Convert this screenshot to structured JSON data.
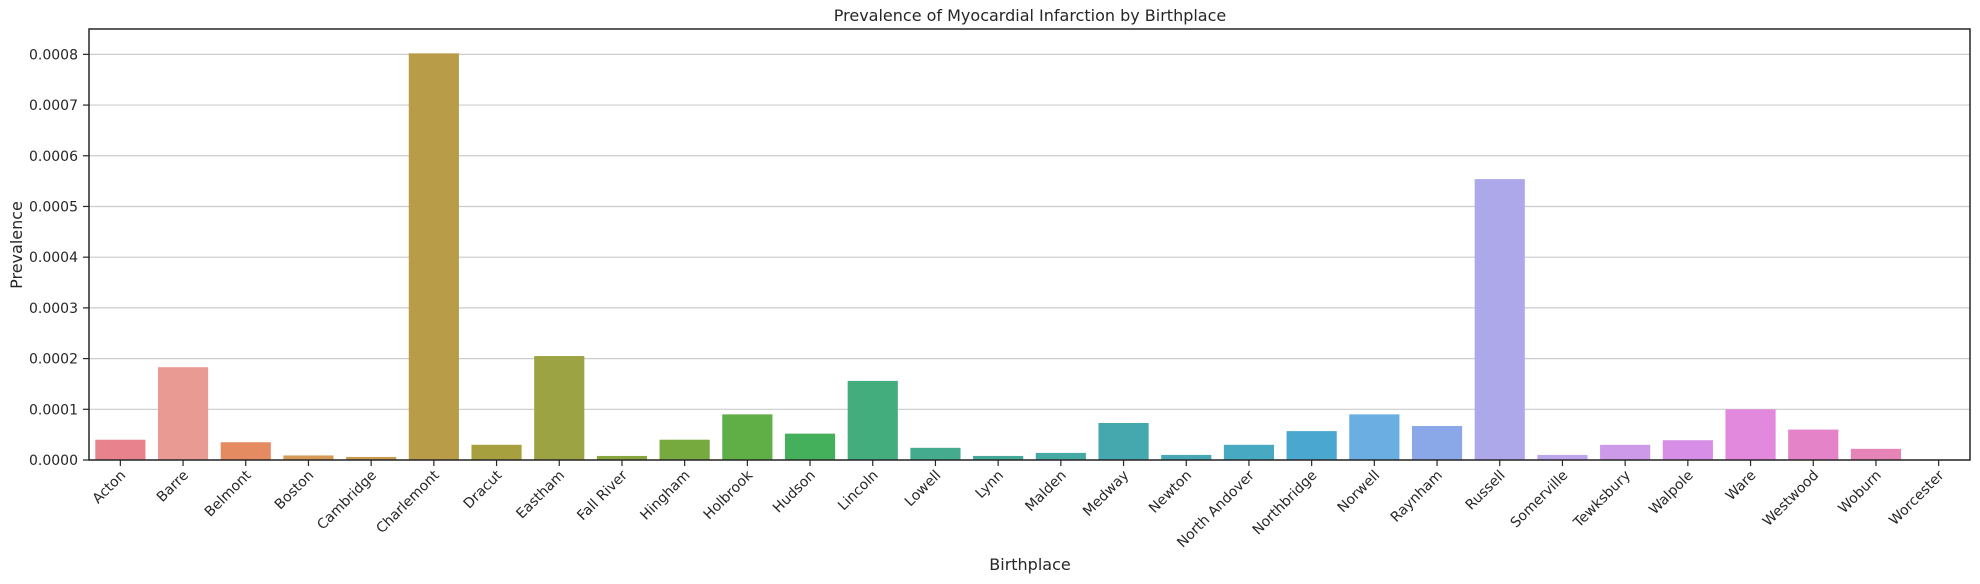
{
  "chart_data": {
    "type": "bar",
    "title": "Prevalence of Myocardial Infarction by Birthplace",
    "xlabel": "Birthplace",
    "ylabel": "Prevalence",
    "ylim": [
      0,
      0.00085
    ],
    "yticks": [
      "0.0000",
      "0.0001",
      "0.0002",
      "0.0003",
      "0.0004",
      "0.0005",
      "0.0006",
      "0.0007",
      "0.0008"
    ],
    "grid": "horizontal",
    "categories": [
      "Acton",
      "Barre",
      "Belmont",
      "Boston",
      "Cambridge",
      "Charlemont",
      "Dracut",
      "Eastham",
      "Fall River",
      "Hingham",
      "Holbrook",
      "Hudson",
      "Lincoln",
      "Lowell",
      "Lynn",
      "Malden",
      "Medway",
      "Newton",
      "North Andover",
      "Northbridge",
      "Norwell",
      "Raynham",
      "Russell",
      "Somerville",
      "Tewksbury",
      "Walpole",
      "Ware",
      "Westwood",
      "Woburn",
      "Worcester"
    ],
    "values": [
      4e-05,
      0.000183,
      3.5e-05,
      9e-06,
      6e-06,
      0.000802,
      3e-05,
      0.000205,
      8e-06,
      4e-05,
      9e-05,
      5.2e-05,
      0.000156,
      2.4e-05,
      8e-06,
      1.4e-05,
      7.3e-05,
      1e-05,
      3e-05,
      5.7e-05,
      9e-05,
      6.7e-05,
      0.000554,
      1e-05,
      3e-05,
      3.9e-05,
      0.0001,
      6e-05,
      2.2e-05,
      1e-06
    ],
    "colors": [
      "#e8828d",
      "#e99a92",
      "#e58b62",
      "#d69958",
      "#c99c51",
      "#b89c48",
      "#a7a03f",
      "#9ba343",
      "#89a53e",
      "#76aa3e",
      "#5fae46",
      "#45b05c",
      "#43ad7e",
      "#44ab8e",
      "#45a99a",
      "#45a9a4",
      "#45a8ae",
      "#47a9b8",
      "#47a9c2",
      "#4aa7d0",
      "#6aaee2",
      "#8aa8e8",
      "#aca8ea",
      "#bea6ec",
      "#cc9ae8",
      "#d78ee6",
      "#e389dd",
      "#e583c9",
      "#e684b7",
      "#e586a7"
    ]
  }
}
